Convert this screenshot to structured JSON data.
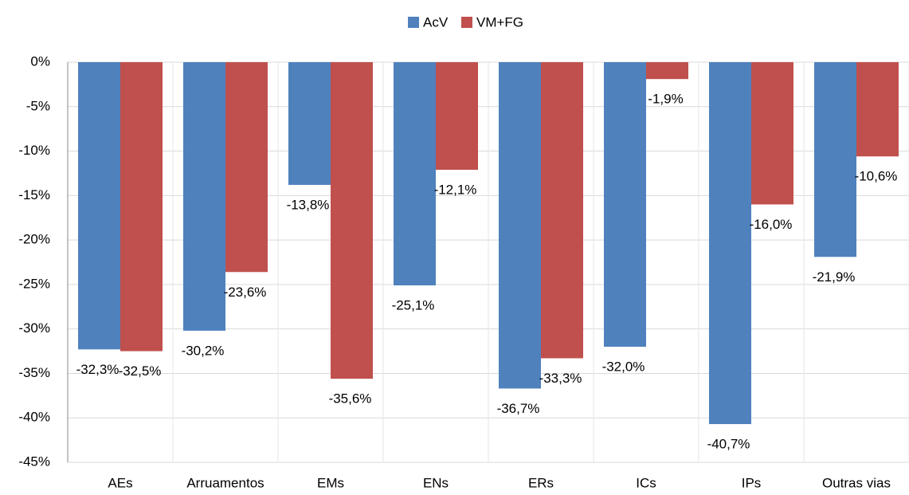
{
  "chart_data": {
    "type": "bar",
    "categories": [
      "AEs",
      "Arruamentos",
      "EMs",
      "ENs",
      "ERs",
      "ICs",
      "IPs",
      "Outras vias"
    ],
    "series": [
      {
        "name": "AcV",
        "color": "#4f81bd",
        "values": [
          -32.3,
          -30.2,
          -13.8,
          -25.1,
          -36.7,
          -32.0,
          -40.7,
          -21.9
        ],
        "value_labels": [
          "-32,3%",
          "-30,2%",
          "-13,8%",
          "-25,1%",
          "-36,7%",
          "-32,0%",
          "-40,7%",
          "-21,9%"
        ]
      },
      {
        "name": "VM+FG",
        "color": "#c0504d",
        "values": [
          -32.5,
          -23.6,
          -35.6,
          -12.1,
          -33.3,
          -1.9,
          -16.0,
          -10.6
        ],
        "value_labels": [
          "-32,5%",
          "-23,6%",
          "-35,6%",
          "-12,1%",
          "-33,3%",
          "-1,9%",
          "-16,0%",
          "-10,6%"
        ]
      }
    ],
    "ylim": [
      -45,
      0
    ],
    "yticks": [
      {
        "value": 0,
        "label": "0%"
      },
      {
        "value": -5,
        "label": "-5%"
      },
      {
        "value": -10,
        "label": "-10%"
      },
      {
        "value": -15,
        "label": "-15%"
      },
      {
        "value": -20,
        "label": "-20%"
      },
      {
        "value": -25,
        "label": "-25%"
      },
      {
        "value": -30,
        "label": "-30%"
      },
      {
        "value": -35,
        "label": "-35%"
      },
      {
        "value": -40,
        "label": "-40%"
      },
      {
        "value": -45,
        "label": "-45%"
      }
    ],
    "grid": true,
    "legend": "top"
  }
}
